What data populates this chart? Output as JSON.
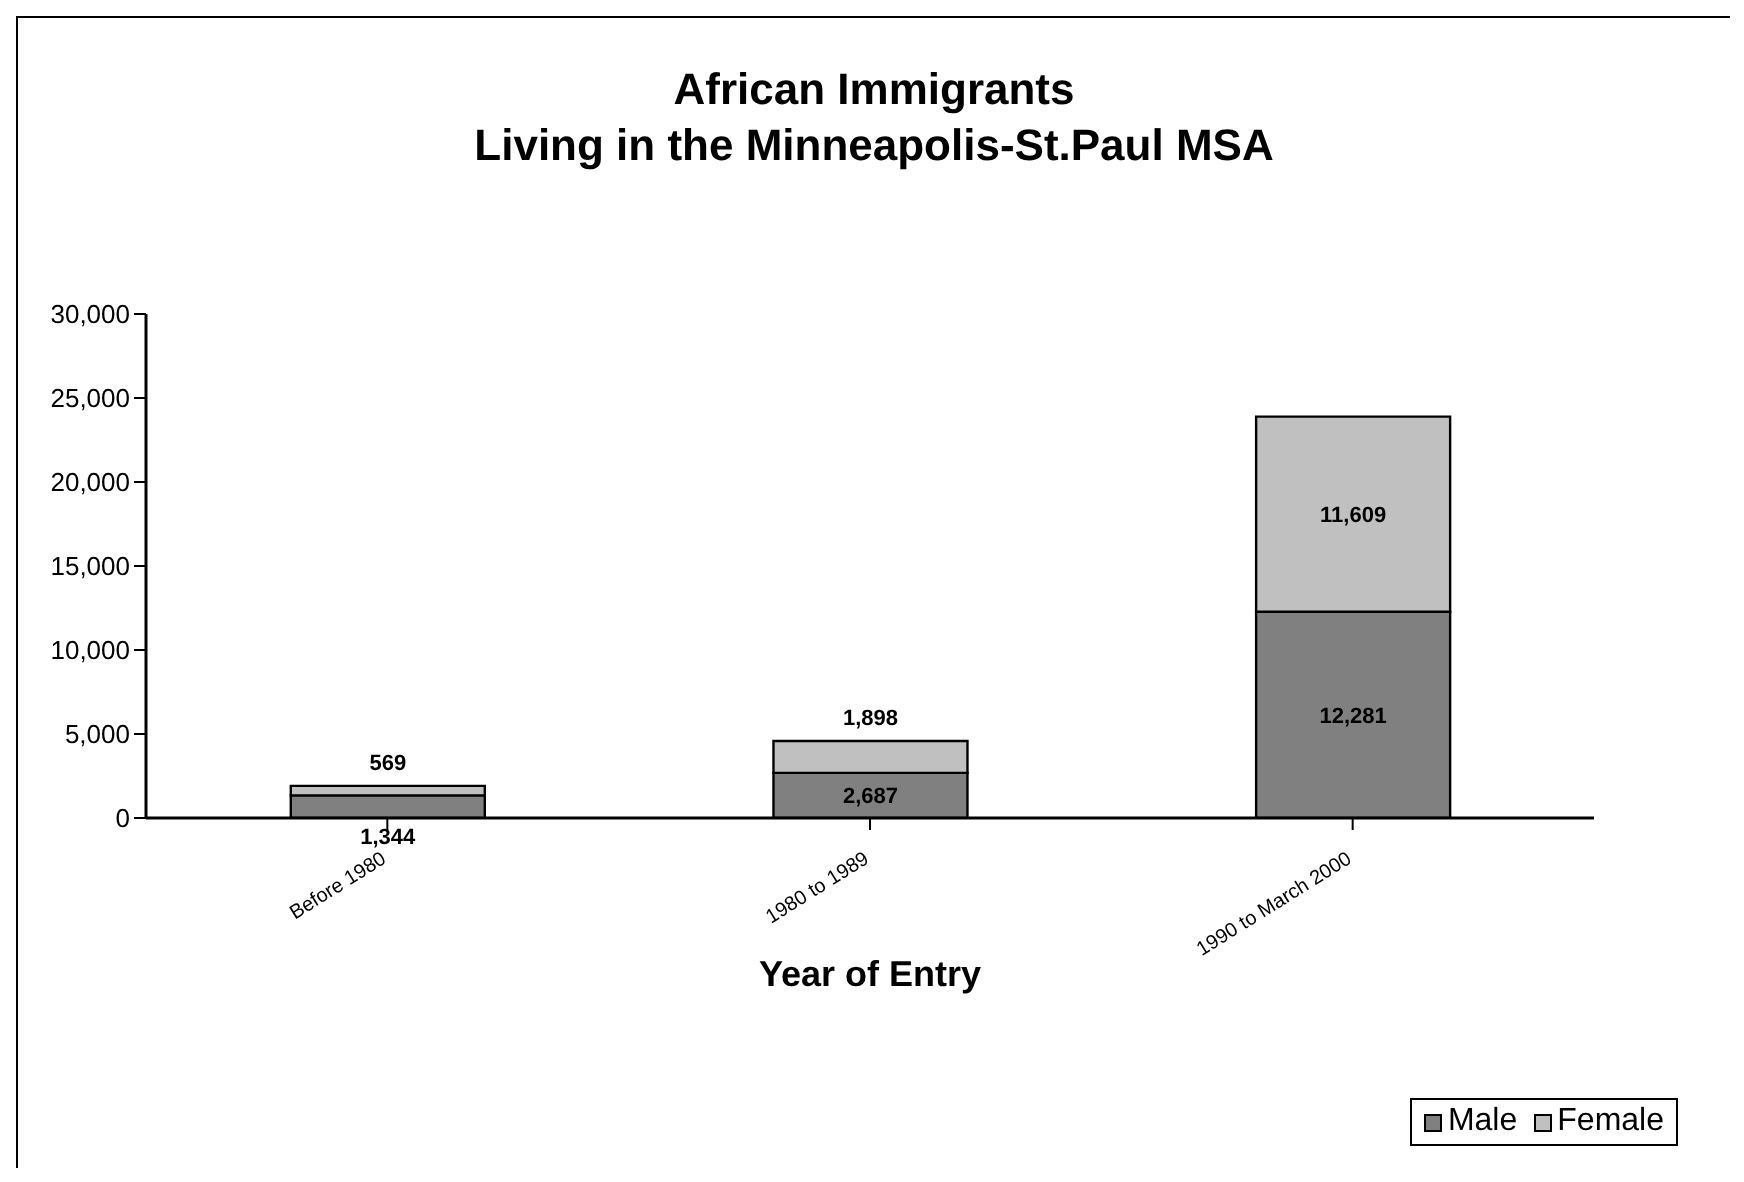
{
  "chart_data": {
    "type": "bar",
    "title": "African Immigrants\nLiving in the Minneapolis-St.Paul MSA",
    "xlabel": "Year of Entry",
    "categories": [
      "Before 1980",
      "1980 to 1989",
      "1990 to March 2000"
    ],
    "stacked": true,
    "series": [
      {
        "name": "Male",
        "color": "#808080",
        "values": [
          1344,
          2687,
          12281
        ],
        "value_labels": [
          "1,344",
          "2,687",
          "12,281"
        ]
      },
      {
        "name": "Female",
        "color": "#c0c0c0",
        "values": [
          569,
          1898,
          11609
        ],
        "value_labels": [
          "569",
          "1,898",
          "11,609"
        ]
      }
    ],
    "ylim": [
      0,
      30000
    ],
    "yticks": [
      0,
      {
        "value": 5000,
        "label": "5,000"
      },
      {
        "value": 10000,
        "label": "10,000"
      },
      {
        "value": 15000,
        "label": "15,000"
      },
      {
        "value": 20000,
        "label": "20,000"
      },
      {
        "value": 25000,
        "label": "25,000"
      },
      {
        "value": 30000,
        "label": "30,000"
      }
    ],
    "legend": "bottom right"
  }
}
